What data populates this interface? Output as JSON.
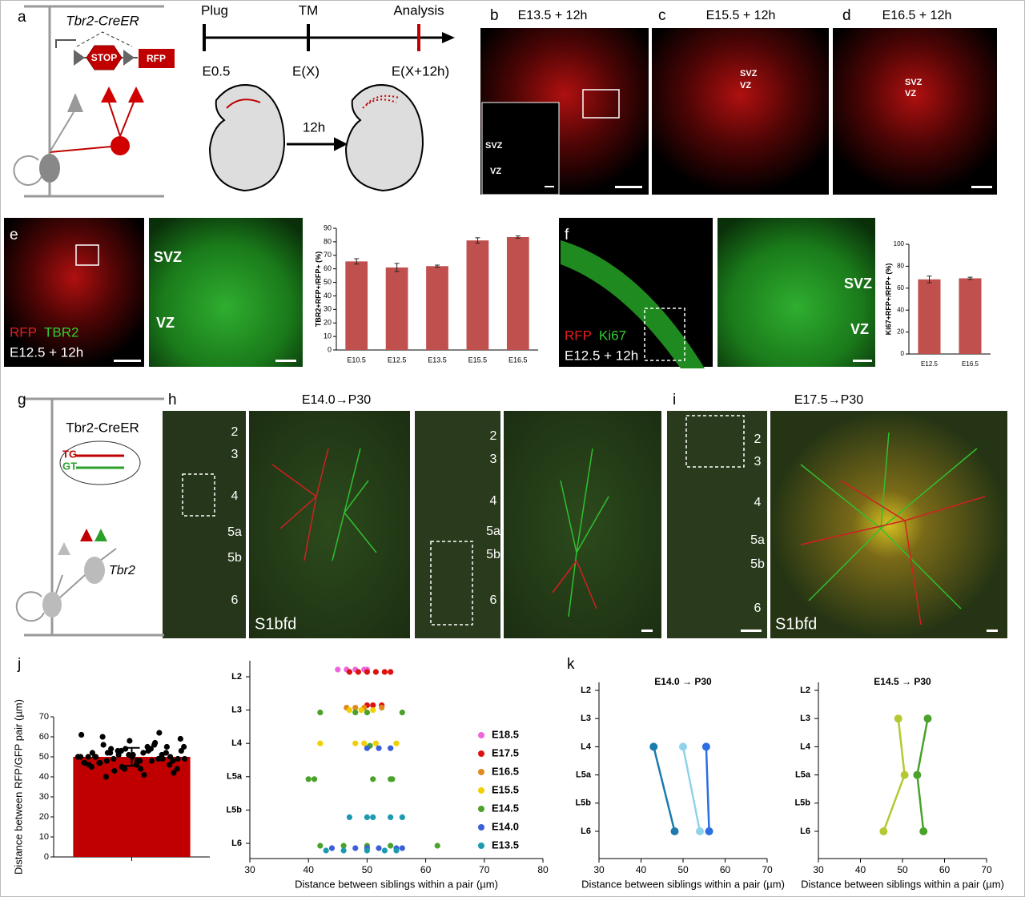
{
  "figure": {
    "a": {
      "label": "a",
      "gene": "Tbr2-CreER",
      "stop": "STOP",
      "reporter": "RFP",
      "timeline": [
        "Plug",
        "TM",
        "Analysis"
      ],
      "stages": [
        "E0.5",
        "E(X)",
        "E(X+12h)"
      ],
      "interval": "12h"
    },
    "b": {
      "label": "b",
      "title": "E13.5 + 12h",
      "zones": [
        "SVZ",
        "VZ"
      ]
    },
    "c": {
      "label": "c",
      "title": "E15.5 + 12h",
      "zones": [
        "SVZ",
        "VZ"
      ]
    },
    "d": {
      "label": "d",
      "title": "E16.5 + 12h",
      "zones": [
        "SVZ",
        "VZ"
      ]
    },
    "e": {
      "label": "e",
      "markers": [
        "RFP",
        "TBR2"
      ],
      "condition": "E12.5 + 12h",
      "zones": [
        "SVZ",
        "VZ"
      ]
    },
    "f": {
      "label": "f",
      "markers": [
        "RFP",
        "Ki67"
      ],
      "condition": "E12.5 + 12h",
      "zones": [
        "SVZ",
        "VZ"
      ]
    },
    "g": {
      "label": "g",
      "gene": "Tbr2-CreER",
      "alleles": [
        "TG",
        "GT"
      ],
      "cell": "Tbr2"
    },
    "h": {
      "label": "h",
      "title": "E14.0→P30",
      "layers": [
        "2",
        "3",
        "4",
        "5a",
        "5b",
        "6"
      ],
      "region": "S1bfd"
    },
    "i": {
      "label": "i",
      "title": "E17.5→P30",
      "layers": [
        "2",
        "3",
        "4",
        "5a",
        "5b",
        "6"
      ],
      "region": "S1bfd"
    },
    "j": {
      "label": "j"
    },
    "k": {
      "label": "k"
    }
  },
  "chart_data": [
    {
      "type": "bar",
      "ylabel": "TBR2+RFP+/RFP+ (%)",
      "categories": [
        "E10.5",
        "E12.5",
        "E13.5",
        "E15.5",
        "E16.5"
      ],
      "values": [
        65.5,
        61,
        62,
        81,
        83.5
      ],
      "errors": [
        2,
        3,
        0.8,
        2,
        0.8
      ],
      "color": "#c0504d",
      "ylim": [
        0,
        90
      ],
      "yticks": [
        0,
        10,
        20,
        30,
        40,
        50,
        60,
        70,
        80,
        90
      ]
    },
    {
      "type": "bar",
      "ylabel": "Ki67+RFP+/RFP+ (%)",
      "categories": [
        "E12.5",
        "E16.5"
      ],
      "values": [
        68,
        69
      ],
      "errors": [
        3,
        1
      ],
      "color": "#c0504d",
      "ylim": [
        0,
        100
      ],
      "yticks": [
        0,
        20,
        40,
        60,
        80,
        100
      ]
    },
    {
      "type": "bar",
      "ylabel": "Distance between RFP/GFP pair (µm)",
      "values": [
        50
      ],
      "errors": [
        4.5
      ],
      "color": "#c00000",
      "points": [
        50,
        52,
        48,
        55,
        46,
        51,
        53,
        49,
        47,
        58,
        62,
        61,
        54,
        44,
        50,
        52,
        45,
        48,
        53,
        56,
        51,
        49,
        47,
        43,
        41,
        42,
        50,
        54,
        57,
        49,
        48,
        46,
        52,
        50,
        53,
        55,
        44,
        47,
        51,
        49,
        50,
        52,
        48,
        46,
        45,
        53,
        54,
        59,
        60,
        50,
        51,
        47,
        49,
        52,
        48,
        50,
        44,
        56,
        55,
        40
      ],
      "ylim": [
        0,
        70
      ],
      "yticks": [
        0,
        10,
        20,
        30,
        40,
        50,
        60,
        70
      ]
    },
    {
      "type": "scatter",
      "xlabel": "Distance between siblings within a pair (µm)",
      "ycategories": [
        "L2",
        "L3",
        "L4",
        "L5a",
        "L5b",
        "L6"
      ],
      "xlim": [
        30,
        80
      ],
      "xticks": [
        30,
        40,
        50,
        60,
        70,
        80
      ],
      "legend": "right",
      "series": [
        {
          "name": "E18.5",
          "color": "#ee66dd",
          "x": [
            45,
            46.5,
            48,
            49.5,
            50
          ],
          "y": [
            "L2",
            "L2",
            "L2",
            "L2",
            "L2"
          ]
        },
        {
          "name": "E17.5",
          "color": "#dd1111",
          "x": [
            47,
            48.5,
            50,
            51.5,
            53,
            54,
            50,
            51,
            52.5
          ],
          "y": [
            "L2",
            "L2",
            "L2",
            "L2",
            "L2",
            "L2",
            "L3",
            "L3",
            "L3"
          ]
        },
        {
          "name": "E16.5",
          "color": "#e08a1e",
          "x": [
            46.5,
            48,
            49.5,
            52.5
          ],
          "y": [
            "L3",
            "L3",
            "L3",
            "L3"
          ]
        },
        {
          "name": "E15.5",
          "color": "#f0d000",
          "x": [
            47,
            49,
            51,
            42,
            48,
            49.5,
            51.5,
            55
          ],
          "y": [
            "L3",
            "L3",
            "L3",
            "L4",
            "L4",
            "L4",
            "L4",
            "L4"
          ]
        },
        {
          "name": "E14.5",
          "color": "#4aa22a",
          "x": [
            42,
            48,
            50,
            56,
            50.5,
            40,
            41,
            51,
            54,
            54.3,
            42,
            46,
            50,
            54,
            62
          ],
          "y": [
            "L3",
            "L3",
            "L3",
            "L3",
            "L4",
            "L5a",
            "L5a",
            "L5a",
            "L5a",
            "L5a",
            "L6",
            "L6",
            "L6",
            "L6",
            "L6"
          ]
        },
        {
          "name": "E14.0",
          "color": "#3a5fd8",
          "x": [
            50,
            52,
            54,
            44,
            48,
            50,
            52,
            55,
            56
          ],
          "y": [
            "L4",
            "L4",
            "L4",
            "L6",
            "L6",
            "L6",
            "L6",
            "L6",
            "L6"
          ]
        },
        {
          "name": "E13.5",
          "color": "#1d9ab0",
          "x": [
            47,
            50,
            51,
            54,
            56,
            43,
            46,
            50,
            53,
            55
          ],
          "y": [
            "L5b",
            "L5b",
            "L5b",
            "L5b",
            "L5b",
            "L6",
            "L6",
            "L6",
            "L6",
            "L6"
          ]
        }
      ]
    },
    {
      "type": "line",
      "title": "E14.0 → P30",
      "xlabel": "Distance between siblings within a pair (µm)",
      "ycategories": [
        "L2",
        "L3",
        "L4",
        "L5a",
        "L5b",
        "L6"
      ],
      "xlim": [
        30,
        70
      ],
      "xticks": [
        30,
        40,
        50,
        60,
        70
      ],
      "series": [
        {
          "color": "#1c7ab0",
          "x": [
            43,
            48
          ],
          "y": [
            "L4",
            "L6"
          ]
        },
        {
          "color": "#8fd3ea",
          "x": [
            50,
            54
          ],
          "y": [
            "L4",
            "L6"
          ]
        },
        {
          "color": "#2b6fe0",
          "x": [
            55.5,
            56.2
          ],
          "y": [
            "L4",
            "L6"
          ]
        }
      ]
    },
    {
      "type": "line",
      "title": "E14.5 → P30",
      "xlabel": "Distance between siblings within a pair (µm)",
      "ycategories": [
        "L2",
        "L3",
        "L4",
        "L5a",
        "L5b",
        "L6"
      ],
      "xlim": [
        30,
        70
      ],
      "xticks": [
        30,
        40,
        50,
        60,
        70
      ],
      "series": [
        {
          "color": "#b5c832",
          "x": [
            49,
            50.5,
            45.5
          ],
          "y": [
            "L3",
            "L5a",
            "L6"
          ]
        },
        {
          "color": "#4aa22a",
          "x": [
            56,
            53.5,
            55
          ],
          "y": [
            "L3",
            "L5a",
            "L6"
          ]
        }
      ]
    }
  ]
}
